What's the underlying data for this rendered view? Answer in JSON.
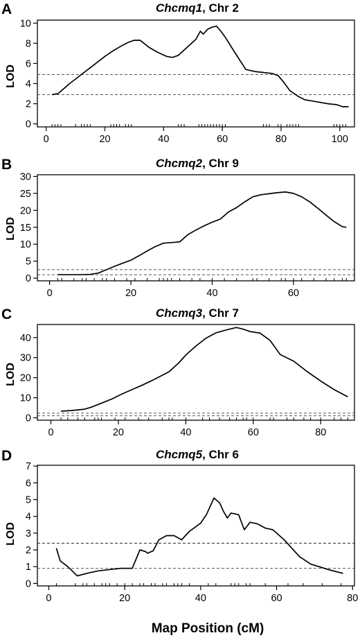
{
  "x_axis_title": "Map Position (cM)",
  "chart_data": [
    {
      "type": "line",
      "panel": "A",
      "title_italic": "Chcmq1",
      "title_rest": ", Chr 2",
      "ylabel": "LOD",
      "xlim": [
        -3,
        105
      ],
      "ylim": [
        -0.3,
        10.3
      ],
      "xticks": [
        0,
        20,
        40,
        60,
        80,
        100
      ],
      "yticks": [
        0,
        2,
        4,
        6,
        8,
        10
      ],
      "thresholds": [
        4.9,
        2.9
      ],
      "threshold_colors": [
        "#555555",
        "#555555"
      ],
      "markers": [
        2,
        3,
        4,
        5,
        10,
        12,
        13,
        14,
        15,
        22,
        23,
        24,
        25,
        27,
        28,
        29,
        45,
        46,
        47,
        52,
        53,
        54,
        55,
        56,
        57,
        58,
        59,
        60,
        61,
        74,
        75,
        76,
        79,
        80,
        82,
        83,
        84,
        85,
        86,
        98,
        99,
        100,
        101,
        102
      ],
      "series": [
        {
          "x": [
            2,
            4,
            6,
            8,
            12,
            16,
            20,
            23,
            26,
            28,
            30,
            32,
            35,
            38,
            41,
            43,
            45,
            48,
            51,
            52.5,
            53.5,
            55,
            56.5,
            58,
            59.5,
            61,
            64,
            66,
            68,
            71,
            74,
            77,
            79,
            81,
            83,
            86,
            88,
            92,
            96,
            99,
            101,
            103
          ],
          "y": [
            2.9,
            3.0,
            3.5,
            4.0,
            4.9,
            5.8,
            6.7,
            7.3,
            7.8,
            8.1,
            8.3,
            8.3,
            7.6,
            7.1,
            6.7,
            6.6,
            6.8,
            7.6,
            8.4,
            9.2,
            8.9,
            9.4,
            9.6,
            9.7,
            9.2,
            8.6,
            7.2,
            6.3,
            5.4,
            5.2,
            5.1,
            5.0,
            4.8,
            4.1,
            3.3,
            2.7,
            2.4,
            2.2,
            2.0,
            1.9,
            1.7,
            1.7
          ]
        }
      ]
    },
    {
      "type": "line",
      "panel": "B",
      "title_italic": "Chcmq2",
      "title_rest": ", Chr 9",
      "ylabel": "LOD",
      "xlim": [
        -3,
        75
      ],
      "ylim": [
        -0.8,
        30.5
      ],
      "xticks": [
        0,
        20,
        40,
        60
      ],
      "yticks": [
        0,
        5,
        10,
        15,
        20,
        25,
        30
      ],
      "thresholds": [
        2.5,
        1.0
      ],
      "threshold_colors": [
        "#555555",
        "#555555"
      ],
      "markers": [
        2,
        3,
        6,
        8,
        9,
        11,
        13,
        14,
        16,
        19,
        21,
        24,
        27,
        28,
        29,
        30,
        32,
        35,
        37,
        40,
        43,
        46,
        50,
        51,
        54,
        57,
        58,
        60,
        62,
        65,
        68,
        70,
        72,
        73
      ],
      "series": [
        {
          "x": [
            2,
            4,
            6,
            8,
            10,
            12,
            14,
            16,
            18,
            20,
            22,
            24,
            26,
            28,
            30,
            31,
            32,
            34,
            36,
            38,
            40,
            42,
            44,
            46,
            48,
            50,
            52,
            54,
            56,
            58,
            60,
            62,
            64,
            66,
            68,
            70,
            72,
            73
          ],
          "y": [
            1.0,
            1.0,
            1.0,
            1.0,
            1.1,
            1.5,
            2.5,
            3.5,
            4.4,
            5.3,
            6.6,
            8.0,
            9.3,
            10.3,
            10.5,
            10.6,
            10.7,
            12.8,
            14.2,
            15.4,
            16.5,
            17.4,
            19.5,
            20.8,
            22.5,
            24.0,
            24.6,
            24.9,
            25.2,
            25.4,
            25.0,
            24.0,
            22.5,
            20.6,
            18.6,
            16.7,
            15.2,
            15.0
          ]
        }
      ]
    },
    {
      "type": "line",
      "panel": "C",
      "title_italic": "Chcmq3",
      "title_rest": ", Chr 7",
      "ylabel": "LOD",
      "xlim": [
        -4,
        90
      ],
      "ylim": [
        -1.2,
        46.5
      ],
      "xticks": [
        0,
        20,
        40,
        60,
        80
      ],
      "yticks": [
        0,
        10,
        20,
        30,
        40
      ],
      "thresholds": [
        2.3,
        1.0
      ],
      "threshold_colors": [
        "#555555",
        "#555555"
      ],
      "markers": [
        3,
        5,
        8,
        10,
        13,
        14,
        15,
        19,
        22,
        26,
        29,
        33,
        35,
        36,
        40,
        45,
        47,
        50,
        53,
        55,
        57,
        58,
        60,
        65,
        66,
        70,
        72,
        75,
        77,
        80,
        84,
        86,
        88
      ],
      "series": [
        {
          "x": [
            3,
            6,
            10,
            12,
            15,
            18,
            21,
            24,
            27,
            30,
            33,
            35,
            38,
            40,
            43,
            46,
            49,
            52,
            55,
            57,
            59,
            62,
            65,
            68,
            72,
            76,
            80,
            84,
            88
          ],
          "y": [
            3.3,
            3.6,
            4.3,
            5.3,
            7.3,
            9.3,
            11.8,
            14.0,
            16.2,
            18.6,
            21.2,
            22.9,
            27.5,
            31.3,
            35.8,
            39.7,
            42.4,
            43.8,
            45.0,
            44.2,
            43.0,
            42.2,
            38.5,
            31.5,
            28.2,
            23.0,
            18.3,
            14.0,
            10.5
          ]
        }
      ]
    },
    {
      "type": "line",
      "panel": "D",
      "title_italic": "Chcmq5",
      "title_rest": ", Chr 6",
      "ylabel": "LOD",
      "xlim": [
        -3,
        80.5
      ],
      "ylim": [
        -0.15,
        7.05
      ],
      "xticks": [
        0,
        20,
        40,
        60,
        80
      ],
      "yticks": [
        0,
        1,
        2,
        3,
        4,
        5,
        6,
        7
      ],
      "thresholds": [
        2.4,
        0.9
      ],
      "threshold_colors": [
        "#222222",
        "#555555"
      ],
      "markers": [
        2,
        7,
        9,
        10,
        12,
        14,
        15,
        16,
        18,
        20,
        22,
        24,
        25,
        27,
        28,
        30,
        31,
        33,
        34,
        35,
        37,
        42,
        44,
        48,
        49,
        50,
        52,
        53,
        57,
        63,
        67,
        72,
        77
      ],
      "series": [
        {
          "x": [
            2,
            3,
            5,
            7.5,
            10,
            13,
            17,
            19,
            22,
            24,
            25.5,
            26,
            27.5,
            29,
            31,
            33,
            35,
            37,
            40,
            41.5,
            43.5,
            45,
            46,
            47,
            48,
            50,
            51.5,
            53,
            55,
            57,
            59,
            62,
            66,
            69,
            74,
            77.5
          ],
          "y": [
            2.1,
            1.35,
            1.0,
            0.45,
            0.6,
            0.75,
            0.85,
            0.9,
            0.9,
            2.0,
            1.9,
            1.8,
            1.95,
            2.6,
            2.85,
            2.85,
            2.6,
            3.1,
            3.6,
            4.1,
            5.1,
            4.8,
            4.3,
            3.9,
            4.2,
            4.1,
            3.2,
            3.65,
            3.55,
            3.3,
            3.2,
            2.6,
            1.6,
            1.15,
            0.8,
            0.6
          ]
        }
      ]
    }
  ]
}
